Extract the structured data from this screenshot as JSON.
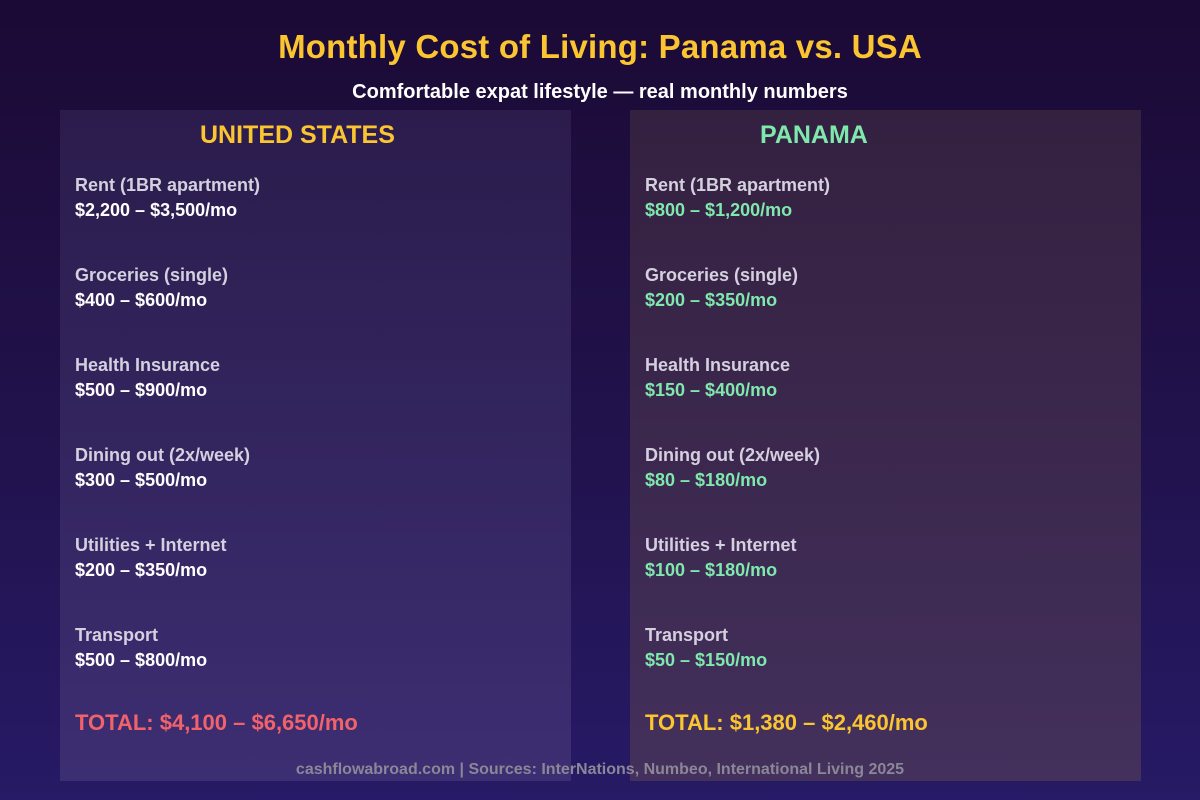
{
  "title": "Monthly Cost of Living: Panama vs. USA",
  "subtitle": "Comfortable expat lifestyle — real monthly numbers",
  "usa": {
    "heading": "UNITED STATES",
    "items": [
      {
        "label": "Rent (1BR apartment)",
        "value": "$2,200 – $3,500/mo"
      },
      {
        "label": "Groceries (single)",
        "value": "$400 – $600/mo"
      },
      {
        "label": "Health Insurance",
        "value": "$500 – $900/mo"
      },
      {
        "label": "Dining out (2x/week)",
        "value": "$300 – $500/mo"
      },
      {
        "label": "Utilities + Internet",
        "value": "$200 – $350/mo"
      },
      {
        "label": "Transport",
        "value": "$500 – $800/mo"
      }
    ],
    "total": "TOTAL: $4,100 – $6,650/mo"
  },
  "panama": {
    "heading": "PANAMA",
    "items": [
      {
        "label": "Rent (1BR apartment)",
        "value": "$800 – $1,200/mo"
      },
      {
        "label": "Groceries (single)",
        "value": "$200 – $350/mo"
      },
      {
        "label": "Health Insurance",
        "value": "$150 – $400/mo"
      },
      {
        "label": "Dining out (2x/week)",
        "value": "$80 – $180/mo"
      },
      {
        "label": "Utilities + Internet",
        "value": "$100 – $180/mo"
      },
      {
        "label": "Transport",
        "value": "$50 – $150/mo"
      }
    ],
    "total": "TOTAL: $1,380 – $2,460/mo"
  },
  "footer": "cashflowabroad.com | Sources: InterNations, Numbeo, International Living 2025",
  "colors": {
    "title": "#fbc531",
    "panama_accent": "#7ee8ad",
    "usa_total": "#f2626b"
  }
}
